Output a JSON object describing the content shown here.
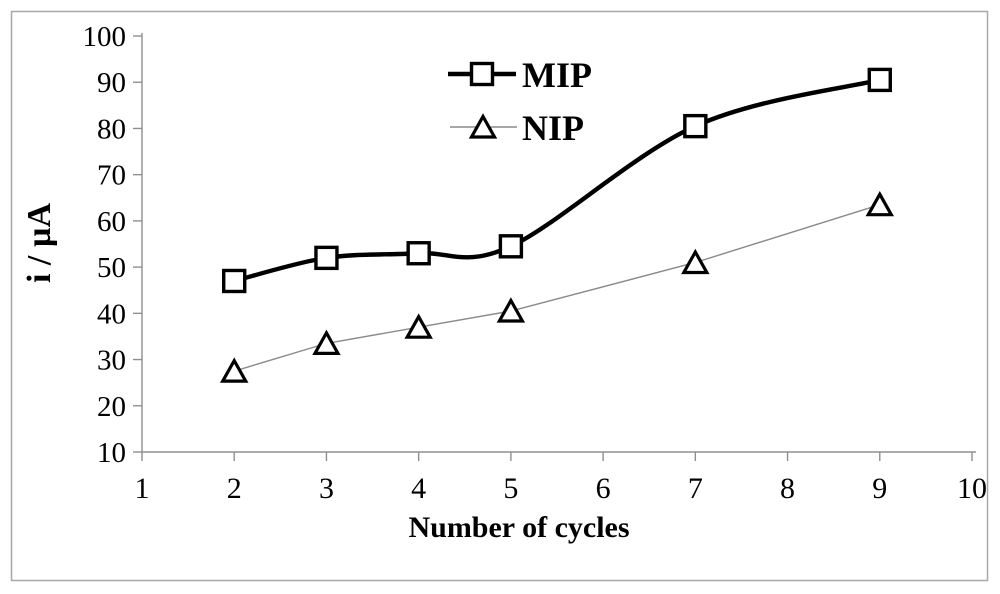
{
  "figure": {
    "background_color": "#ffffff",
    "border_color": "#a8a8a8"
  },
  "chart_data": {
    "type": "line",
    "title": "",
    "xlabel": "Number of cycles",
    "ylabel": "i / µA",
    "x": [
      2,
      3,
      4,
      5,
      7,
      9
    ],
    "series": [
      {
        "name": "MIP",
        "marker": "square",
        "smooth": true,
        "line_color": "#000000",
        "line_width": 4.4,
        "marker_stroke": "#000000",
        "marker_fill": "#ffffff",
        "values": [
          47,
          52,
          53,
          54.5,
          80.5,
          90.5
        ]
      },
      {
        "name": "NIP",
        "marker": "triangle",
        "smooth": false,
        "line_color": "#8a8a8a",
        "line_width": 1.4,
        "marker_stroke": "#000000",
        "marker_fill": "#ffffff",
        "values": [
          27.5,
          33.5,
          37,
          40.5,
          51,
          63.5
        ]
      }
    ],
    "xlim": [
      1,
      10
    ],
    "ylim": [
      10,
      100
    ],
    "x_ticks": [
      1,
      2,
      3,
      4,
      5,
      6,
      7,
      8,
      9,
      10
    ],
    "y_ticks": [
      10,
      20,
      30,
      40,
      50,
      60,
      70,
      80,
      90,
      100
    ],
    "grid": false,
    "legend_position": "top-center",
    "axis_color": "#8f8f8f",
    "tick_label_color": "#000000"
  }
}
